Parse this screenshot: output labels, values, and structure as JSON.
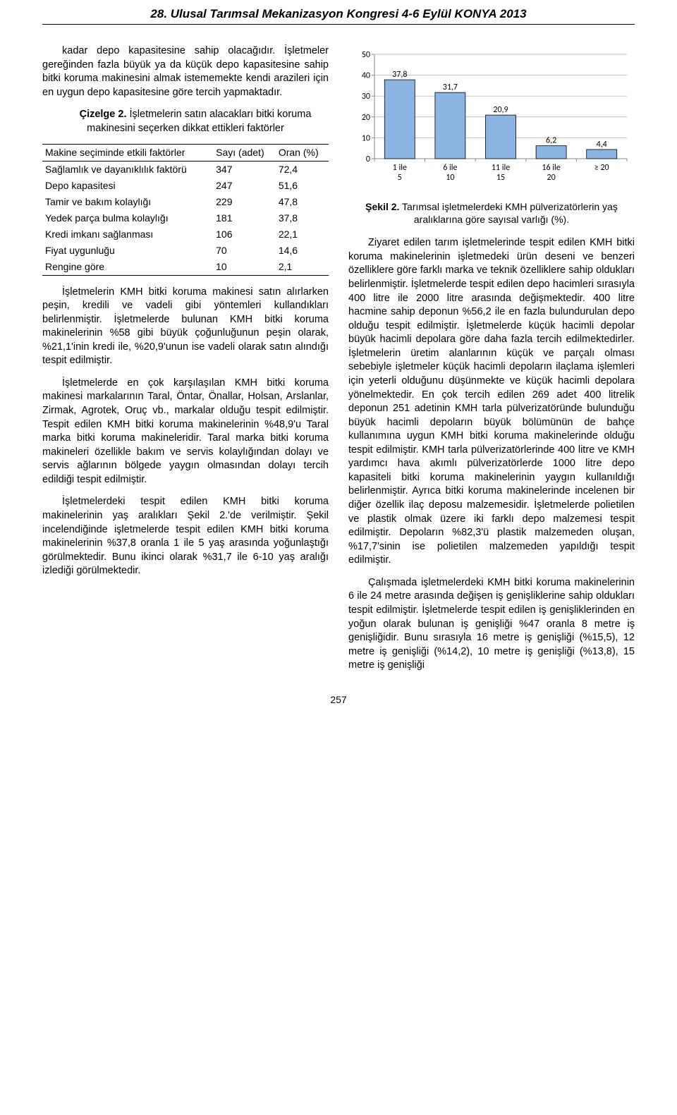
{
  "header": {
    "title": "28. Ulusal Tarımsal Mekanizasyon Kongresi 4-6 Eylül KONYA 2013"
  },
  "left_col": {
    "p1": "kadar depo kapasitesine sahip olacağıdır. İşletmeler gereğinden fazla büyük ya da küçük depo kapasitesine sahip bitki koruma makinesini almak istememekte kendi arazileri için en uygun depo kapasitesine göre tercih yapmaktadır.",
    "cizelge_label": "Çizelge 2.",
    "cizelge_text": " İşletmelerin satın alacakları bitki koruma makinesini seçerken dikkat ettikleri faktörler",
    "p2": "İşletmelerin KMH bitki koruma makinesi satın alırlarken peşin, kredili ve vadeli gibi yöntemleri kullandıkları belirlenmiştir. İşletmelerde bulunan KMH bitki koruma makinelerinin %58 gibi büyük çoğunluğunun peşin olarak, %21,1'inin kredi ile, %20,9'unun ise vadeli olarak satın alındığı tespit edilmiştir.",
    "p3": "İşletmelerde en çok karşılaşılan KMH bitki koruma makinesi markalarının Taral, Öntar, Önallar, Holsan, Arslanlar, Zirmak, Agrotek, Oruç vb., markalar olduğu tespit edilmiştir. Tespit edilen KMH bitki koruma makinelerinin %48,9'u Taral marka bitki koruma makineleridir. Taral marka bitki koruma makineleri özellikle bakım ve servis kolaylığından dolayı ve servis ağlarının bölgede yaygın olmasından dolayı tercih edildiği tespit edilmiştir.",
    "p4": "İşletmelerdeki tespit edilen KMH bitki koruma makinelerinin yaş aralıkları Şekil 2.'de verilmiştir. Şekil incelendiğinde işletmelerde tespit edilen KMH bitki koruma makinelerinin %37,8 oranla 1 ile 5 yaş arasında yoğunlaştığı görülmektedir. Bunu ikinci olarak %31,7 ile 6-10 yaş aralığı izlediği görülmektedir."
  },
  "table": {
    "col_headers": [
      "Makine seçiminde etkili faktörler",
      "Sayı (adet)",
      "Oran (%)"
    ],
    "rows": [
      [
        "Sağlamlık ve dayanıklılık faktörü",
        "347",
        "72,4"
      ],
      [
        "Depo kapasitesi",
        "247",
        "51,6"
      ],
      [
        "Tamir ve bakım kolaylığı",
        "229",
        "47,8"
      ],
      [
        "Yedek parça bulma kolaylığı",
        "181",
        "37,8"
      ],
      [
        "Kredi imkanı sağlanması",
        "106",
        "22,1"
      ],
      [
        "Fiyat uygunluğu",
        "70",
        "14,6"
      ],
      [
        "Rengine göre",
        "10",
        "2,1"
      ]
    ]
  },
  "chart": {
    "type": "bar",
    "categories": [
      "1 ile 5",
      "6 ile 10",
      "11 ile 15",
      "16 ile 20",
      "≥ 20"
    ],
    "values": [
      37.8,
      31.7,
      20.9,
      6.2,
      4.4
    ],
    "value_labels": [
      "37,8",
      "31,7",
      "20,9",
      "6,2",
      "4,4"
    ],
    "bar_color": "#8cb4e2",
    "bar_border": "#000000",
    "axis_color": "#888888",
    "grid_color": "#bfbfbf",
    "text_color": "#000000",
    "background_color": "#ffffff",
    "ylim": [
      0,
      50
    ],
    "ytick_step": 10,
    "yticks": [
      0,
      10,
      20,
      30,
      40,
      50
    ],
    "label_fontsize": 12,
    "bar_width": 0.6,
    "caption_bold": "Şekil 2.",
    "caption_rest": " Tarımsal işletmelerdeki KMH pülverizatörlerin yaş aralıklarına göre sayısal varlığı (%)."
  },
  "right_col": {
    "p1": "Ziyaret edilen tarım işletmelerinde tespit edilen KMH bitki koruma makinelerinin işletmedeki ürün deseni ve benzeri özelliklere göre farklı marka ve teknik özelliklere sahip oldukları belirlenmiştir. İşletmelerde tespit edilen depo hacimleri sırasıyla 400 litre ile 2000 litre arasında değişmektedir. 400 litre hacmine sahip deponun %56,2 ile en fazla bulundurulan depo olduğu tespit edilmiştir. İşletmelerde küçük hacimli depolar büyük hacimli depolara göre daha fazla tercih edilmektedirler. İşletmelerin üretim alanlarının küçük ve parçalı olması sebebiyle işletmeler küçük hacimli depoların ilaçlama işlemleri için yeterli olduğunu düşünmekte ve küçük hacimli depolara yönelmektedir. En çok tercih edilen 269 adet 400 litrelik deponun 251 adetinin KMH tarla pülverizatöründe bulunduğu büyük hacimli depoların büyük bölümünün de bahçe kullanımına uygun KMH bitki koruma makinelerinde olduğu tespit edilmiştir. KMH tarla pülverizatörlerinde 400 litre ve KMH yardımcı hava akımlı pülverizatörlerde 1000 litre depo kapasiteli bitki koruma makinelerinin yaygın kullanıldığı belirlenmiştir. Ayrıca bitki koruma makinelerinde incelenen bir diğer özellik ilaç deposu malzemesidir. İşletmelerde polietilen ve plastik olmak üzere iki farklı depo malzemesi tespit edilmiştir. Depoların %82,3'ü plastik malzemeden oluşan, %17,7'sinin ise polietilen malzemeden yapıldığı tespit edilmiştir.",
    "p2": "Çalışmada işletmelerdeki KMH bitki koruma makinelerinin 6 ile 24 metre arasında değişen iş genişliklerine sahip oldukları tespit edilmiştir. İşletmelerde tespit edilen iş genişliklerinden en yoğun olarak bulunan iş genişliği %47 oranla 8 metre iş genişliğidir. Bunu sırasıyla 16 metre iş genişliği (%15,5), 12 metre iş genişliği (%14,2), 10 metre iş genişliği (%13,8), 15 metre iş genişliği"
  },
  "page_number": "257"
}
